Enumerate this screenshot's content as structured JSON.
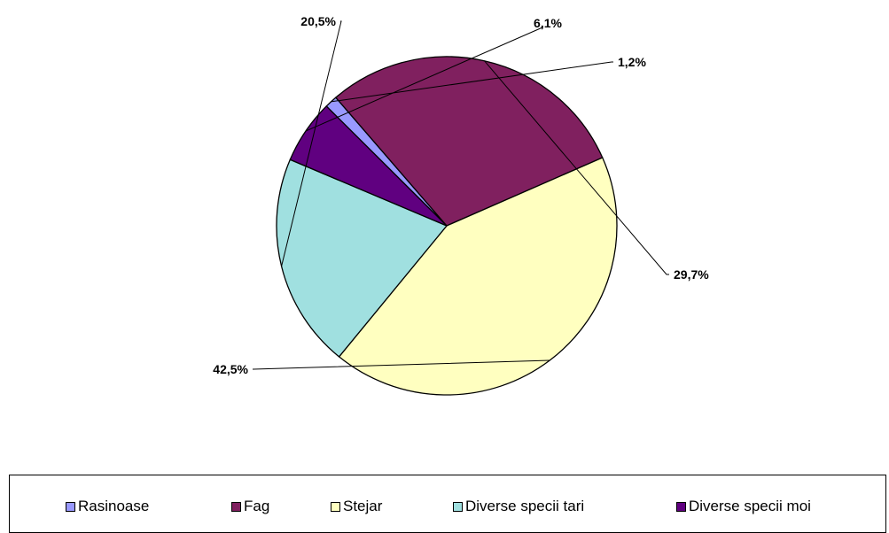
{
  "chart_data": {
    "type": "pie",
    "slices": [
      {
        "name": "Rasinoase",
        "value": 1.2,
        "label": "1,2%",
        "color": "#9999ff"
      },
      {
        "name": "Fag",
        "value": 29.7,
        "label": "29,7%",
        "color": "#80205f"
      },
      {
        "name": "Stejar",
        "value": 42.5,
        "label": "42,5%",
        "color": "#ffffc0"
      },
      {
        "name": "Diverse specii tari",
        "value": 20.5,
        "label": "20,5%",
        "color": "#a0e0e0"
      },
      {
        "name": "Diverse specii moi",
        "value": 6.1,
        "label": "6,1%",
        "color": "#600080"
      }
    ],
    "legend_position": "bottom"
  }
}
